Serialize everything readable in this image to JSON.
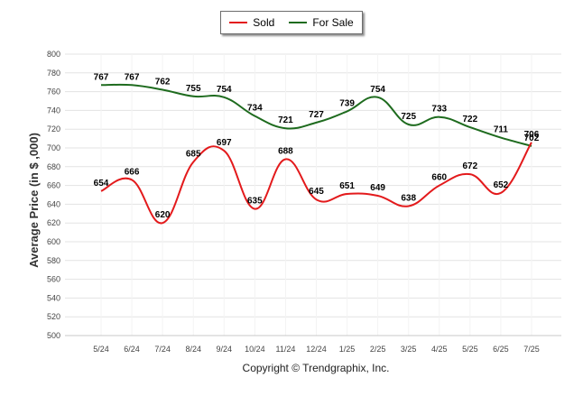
{
  "chart_data": {
    "type": "line",
    "title": "",
    "xlabel": "",
    "ylabel": "Average Price (in $ ,000)",
    "categories": [
      "5/24",
      "6/24",
      "7/24",
      "8/24",
      "9/24",
      "10/24",
      "11/24",
      "12/24",
      "1/25",
      "2/25",
      "3/25",
      "4/25",
      "5/25",
      "6/25",
      "7/25"
    ],
    "ylim": [
      500,
      800
    ],
    "yticks": [
      500,
      520,
      540,
      560,
      580,
      600,
      620,
      640,
      660,
      680,
      700,
      720,
      740,
      760,
      780,
      800
    ],
    "grid": true,
    "legend_position": "top-center",
    "series": [
      {
        "name": "Sold",
        "color": "#e31a1c",
        "values": [
          654,
          666,
          620,
          685,
          697,
          635,
          688,
          645,
          651,
          649,
          638,
          660,
          672,
          652,
          706
        ]
      },
      {
        "name": "For Sale",
        "color": "#1e6b1e",
        "values": [
          767,
          767,
          762,
          755,
          754,
          734,
          721,
          727,
          739,
          754,
          725,
          733,
          722,
          711,
          702
        ]
      }
    ]
  },
  "copyright": "Copyright © Trendgraphix, Inc."
}
